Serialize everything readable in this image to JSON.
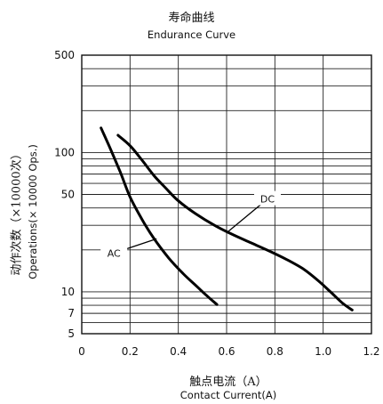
{
  "chart_data": {
    "type": "line",
    "title_cn": "寿命曲线",
    "title": "Endurance Curve",
    "xlabel_cn": "触点电流（A）",
    "xlabel": "Contact Current(A)",
    "ylabel_cn": "动作次数（×10000次）",
    "ylabel": "Operations(× 10000 Ops.)",
    "xlim": [
      0,
      1.2
    ],
    "ylim": [
      5,
      500
    ],
    "yscale": "log",
    "xticks": [
      "0",
      "0.2",
      "0.4",
      "0.6",
      "0.8",
      "1.0",
      "1.2"
    ],
    "yticks": [
      "5",
      "7",
      "10",
      "50",
      "100",
      "500"
    ],
    "grid": true,
    "series": [
      {
        "name": "AC",
        "x": [
          0.08,
          0.12,
          0.16,
          0.2,
          0.25,
          0.3,
          0.36,
          0.42,
          0.48,
          0.52,
          0.56
        ],
        "y": [
          150,
          105,
          72,
          48,
          33,
          24,
          17.5,
          13.5,
          10.8,
          9.3,
          8.1
        ]
      },
      {
        "name": "DC",
        "x": [
          0.15,
          0.2,
          0.25,
          0.3,
          0.35,
          0.4,
          0.47,
          0.55,
          0.62,
          0.7,
          0.78,
          0.85,
          0.92,
          0.98,
          1.03,
          1.08,
          1.12
        ],
        "y": [
          133,
          112,
          88,
          68,
          55,
          45,
          36.5,
          30,
          26,
          22.5,
          19.5,
          17,
          14.5,
          12,
          10,
          8.3,
          7.4
        ]
      }
    ]
  }
}
